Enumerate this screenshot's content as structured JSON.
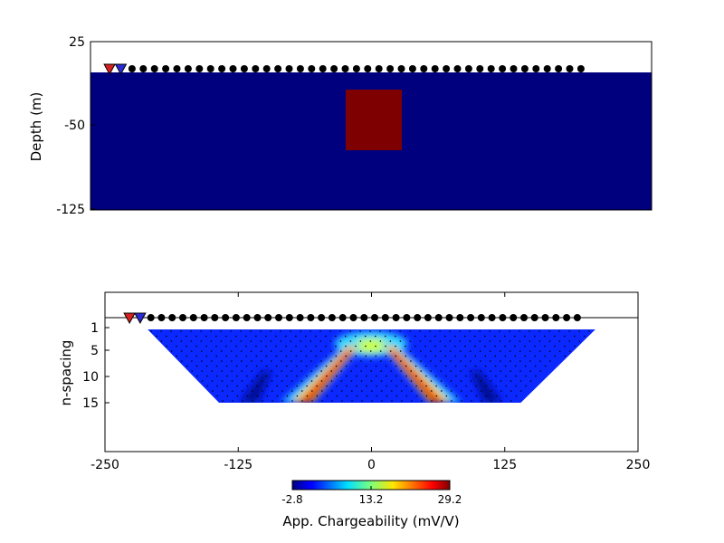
{
  "chart_data": [
    {
      "type": "heatmap",
      "title": "",
      "xlabel": "",
      "ylabel": "Depth (m)",
      "xlim": [
        -250,
        250
      ],
      "ylim": [
        -125,
        25
      ],
      "yticks": [
        "25",
        "-50",
        "-125"
      ],
      "background_color": "#00007f",
      "anomaly": {
        "x": [
          -22,
          28
        ],
        "y": [
          -15,
          -70
        ],
        "color": "#7f0000"
      },
      "ground_surface": 0,
      "current_electrodes": [
        {
          "x": -233,
          "color": "#d62020"
        },
        {
          "x": -223,
          "color": "#2b2bd6"
        }
      ],
      "potential_electrodes": {
        "start": -213,
        "step": 10,
        "count": 41
      }
    },
    {
      "type": "heatmap",
      "title": "",
      "xlabel": "",
      "ylabel": "n-spacing",
      "xlim": [
        -250,
        250
      ],
      "yticks": [
        "1",
        "5",
        "10",
        "15"
      ],
      "xticks": [
        "-250",
        "-125",
        "0",
        "125",
        "250"
      ],
      "pseudosection": {
        "top_n": 1,
        "bottom_n": 15,
        "top_x": [
          -210,
          210
        ],
        "bottom_x": [
          -143,
          140
        ]
      },
      "current_electrodes": [
        {
          "x": -227,
          "color": "#d62020"
        },
        {
          "x": -217,
          "color": "#2b2bd6"
        }
      ],
      "potential_electrodes": {
        "start": -207,
        "step": 10,
        "count": 41
      },
      "colorbar": {
        "label": "App. Chargeability (mV/V)",
        "ticks": [
          "-2.8",
          "13.2",
          "29.2"
        ],
        "min": -2.8,
        "max": 29.2,
        "colormap": "jet"
      }
    }
  ]
}
